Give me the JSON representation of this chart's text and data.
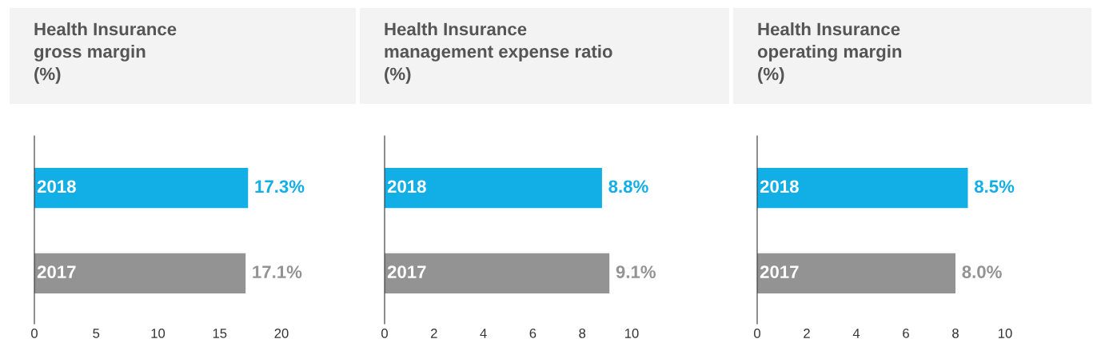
{
  "chart_data": [
    {
      "type": "bar",
      "orientation": "horizontal",
      "title": "Health Insurance\ngross margin\n(%)",
      "categories": [
        "2018",
        "2017"
      ],
      "values": [
        17.3,
        17.1
      ],
      "colors": [
        "#12aee6",
        "#939393"
      ],
      "value_labels": [
        "17.3%",
        "17.1%"
      ],
      "xlim": [
        0,
        20
      ],
      "xticks": [
        0,
        5,
        10,
        15,
        20
      ],
      "grid": false,
      "legend": false
    },
    {
      "type": "bar",
      "orientation": "horizontal",
      "title": "Health Insurance\nmanagement expense ratio\n(%)",
      "categories": [
        "2018",
        "2017"
      ],
      "values": [
        8.8,
        9.1
      ],
      "colors": [
        "#12aee6",
        "#939393"
      ],
      "value_labels": [
        "8.8%",
        "9.1%"
      ],
      "xlim": [
        0,
        10
      ],
      "xticks": [
        0,
        2,
        4,
        6,
        8,
        10
      ],
      "grid": false,
      "legend": false
    },
    {
      "type": "bar",
      "orientation": "horizontal",
      "title": "Health Insurance\noperating margin\n(%)",
      "categories": [
        "2018",
        "2017"
      ],
      "values": [
        8.5,
        8.0
      ],
      "colors": [
        "#12aee6",
        "#939393"
      ],
      "value_labels": [
        "8.5%",
        "8.0%"
      ],
      "xlim": [
        0,
        10
      ],
      "xticks": [
        0,
        2,
        4,
        6,
        8,
        10
      ],
      "grid": false,
      "legend": false
    }
  ]
}
